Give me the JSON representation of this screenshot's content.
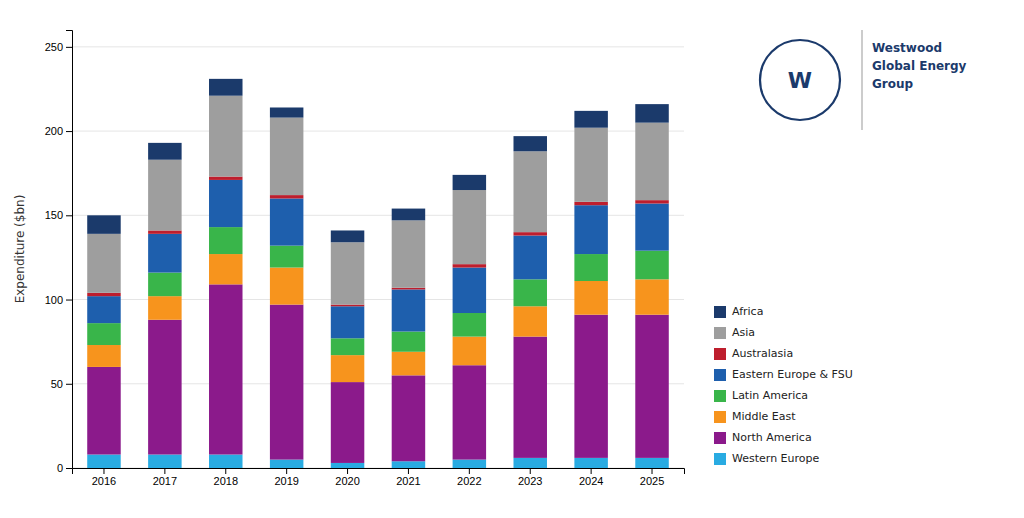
{
  "chart_data": {
    "type": "bar",
    "stacked": true,
    "categories": [
      2016,
      2017,
      2018,
      2019,
      2020,
      2021,
      2022,
      2023,
      2024,
      2025
    ],
    "series": [
      {
        "name": "Western Europe",
        "color": "#29ABE2",
        "values": [
          8,
          8,
          8,
          5,
          3,
          4,
          5,
          6,
          6,
          6
        ]
      },
      {
        "name": "North America",
        "color": "#8B1A8B",
        "values": [
          52,
          80,
          101,
          92,
          48,
          51,
          56,
          72,
          85,
          85
        ]
      },
      {
        "name": "Middle East",
        "color": "#F7941D",
        "values": [
          13,
          14,
          18,
          22,
          16,
          14,
          17,
          18,
          20,
          21
        ]
      },
      {
        "name": "Latin America",
        "color": "#39B54A",
        "values": [
          13,
          14,
          16,
          13,
          10,
          12,
          14,
          16,
          16,
          17
        ]
      },
      {
        "name": "Eastern Europe & FSU",
        "color": "#1E5FAD",
        "values": [
          16,
          23,
          28,
          28,
          19,
          25,
          27,
          26,
          29,
          28
        ]
      },
      {
        "name": "Australasia",
        "color": "#BE1E2D",
        "values": [
          2,
          2,
          2,
          2,
          1,
          1,
          2,
          2,
          2,
          2
        ]
      },
      {
        "name": "Asia",
        "color": "#9E9E9E",
        "values": [
          35,
          42,
          48,
          46,
          37,
          40,
          44,
          48,
          44,
          46
        ]
      },
      {
        "name": "Africa",
        "color": "#1B3A6B",
        "values": [
          11,
          10,
          10,
          6,
          7,
          7,
          9,
          9,
          10,
          11
        ]
      }
    ],
    "y_label": "Expenditure ($bn)",
    "ylim": [
      0,
      260
    ],
    "yticks": [
      0,
      50,
      100,
      150,
      200,
      250
    ],
    "grid": true,
    "legend": "right",
    "annotations": [
      "W",
      "Westwood",
      "Global Energy",
      "Group"
    ]
  }
}
